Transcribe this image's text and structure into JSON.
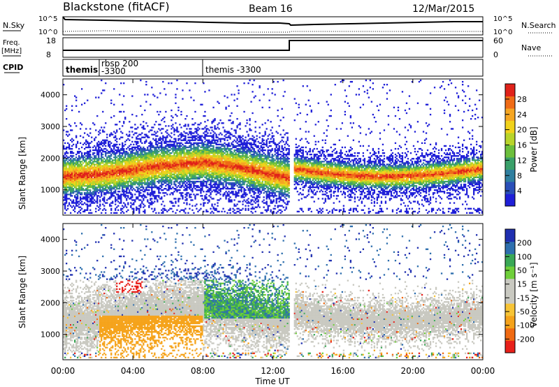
{
  "header": {
    "station": "Blackstone (fitACF)",
    "beam": "Beam 16",
    "date": "12/Mar/2015"
  },
  "strips": {
    "nsky_label": "N.Sky",
    "nsearch_label": "N.Search",
    "freq_label": "Freq.",
    "freq_unit": "[MHz]",
    "nave_label": "Nave",
    "cpid_label": "CPID",
    "ticks_left_top": [
      "10^5",
      "10^0"
    ],
    "ticks_right_top": [
      "10^5",
      "10^0"
    ],
    "ticks_left_freq": [
      "18",
      "8"
    ],
    "ticks_right_nave": [
      "60",
      "0"
    ],
    "cpid_entries": [
      "themis",
      "rbsp 200",
      "-3300",
      "themis -3300"
    ]
  },
  "colorbars": {
    "power": {
      "label": "Power [dB]",
      "ticks": [
        "28",
        "24",
        "20",
        "16",
        "12",
        "8",
        "4"
      ],
      "colors": [
        "#1f1fd8",
        "#2a4fb8",
        "#2f7f9f",
        "#3aa06a",
        "#6cbf3c",
        "#b8d42a",
        "#f1d21b",
        "#f5a623",
        "#ef6b16",
        "#e0221a"
      ]
    },
    "velocity": {
      "label": "Velocity [m s⁻¹]",
      "ticks": [
        "200",
        "100",
        "50",
        "15",
        "-15",
        "-50",
        "-100",
        "-200"
      ],
      "colors": [
        "#e8201a",
        "#f06a12",
        "#f5a31b",
        "#f7c436",
        "#c9c9c1",
        "#c9c9c1",
        "#6fcf3a",
        "#3aa856",
        "#2e6fae",
        "#1f2fb0"
      ]
    }
  },
  "chart_data": [
    {
      "type": "heatmap",
      "title": "",
      "xlabel": "",
      "ylabel": "Slant Range [km]",
      "x_ticks": [
        "00:00",
        "04:00",
        "08:00",
        "12:00",
        "16:00",
        "20:00",
        "00:00"
      ],
      "y_ticks": [
        "1000",
        "2000",
        "3000",
        "4000"
      ],
      "xlim": [
        0,
        24
      ],
      "ylim": [
        200,
        4500
      ],
      "colorbar": "Power [dB]",
      "clim": [
        0,
        30
      ]
    },
    {
      "type": "heatmap",
      "title": "",
      "xlabel": "Time UT",
      "ylabel": "Slant Range [km]",
      "x_ticks": [
        "00:00",
        "04:00",
        "08:00",
        "12:00",
        "16:00",
        "20:00",
        "00:00"
      ],
      "y_ticks": [
        "1000",
        "2000",
        "3000",
        "4000"
      ],
      "xlim": [
        0,
        24
      ],
      "ylim": [
        200,
        4500
      ],
      "colorbar": "Velocity [m s⁻¹]",
      "clim": [
        -200,
        200
      ]
    }
  ],
  "footer": {
    "time_label": "Time UT"
  }
}
